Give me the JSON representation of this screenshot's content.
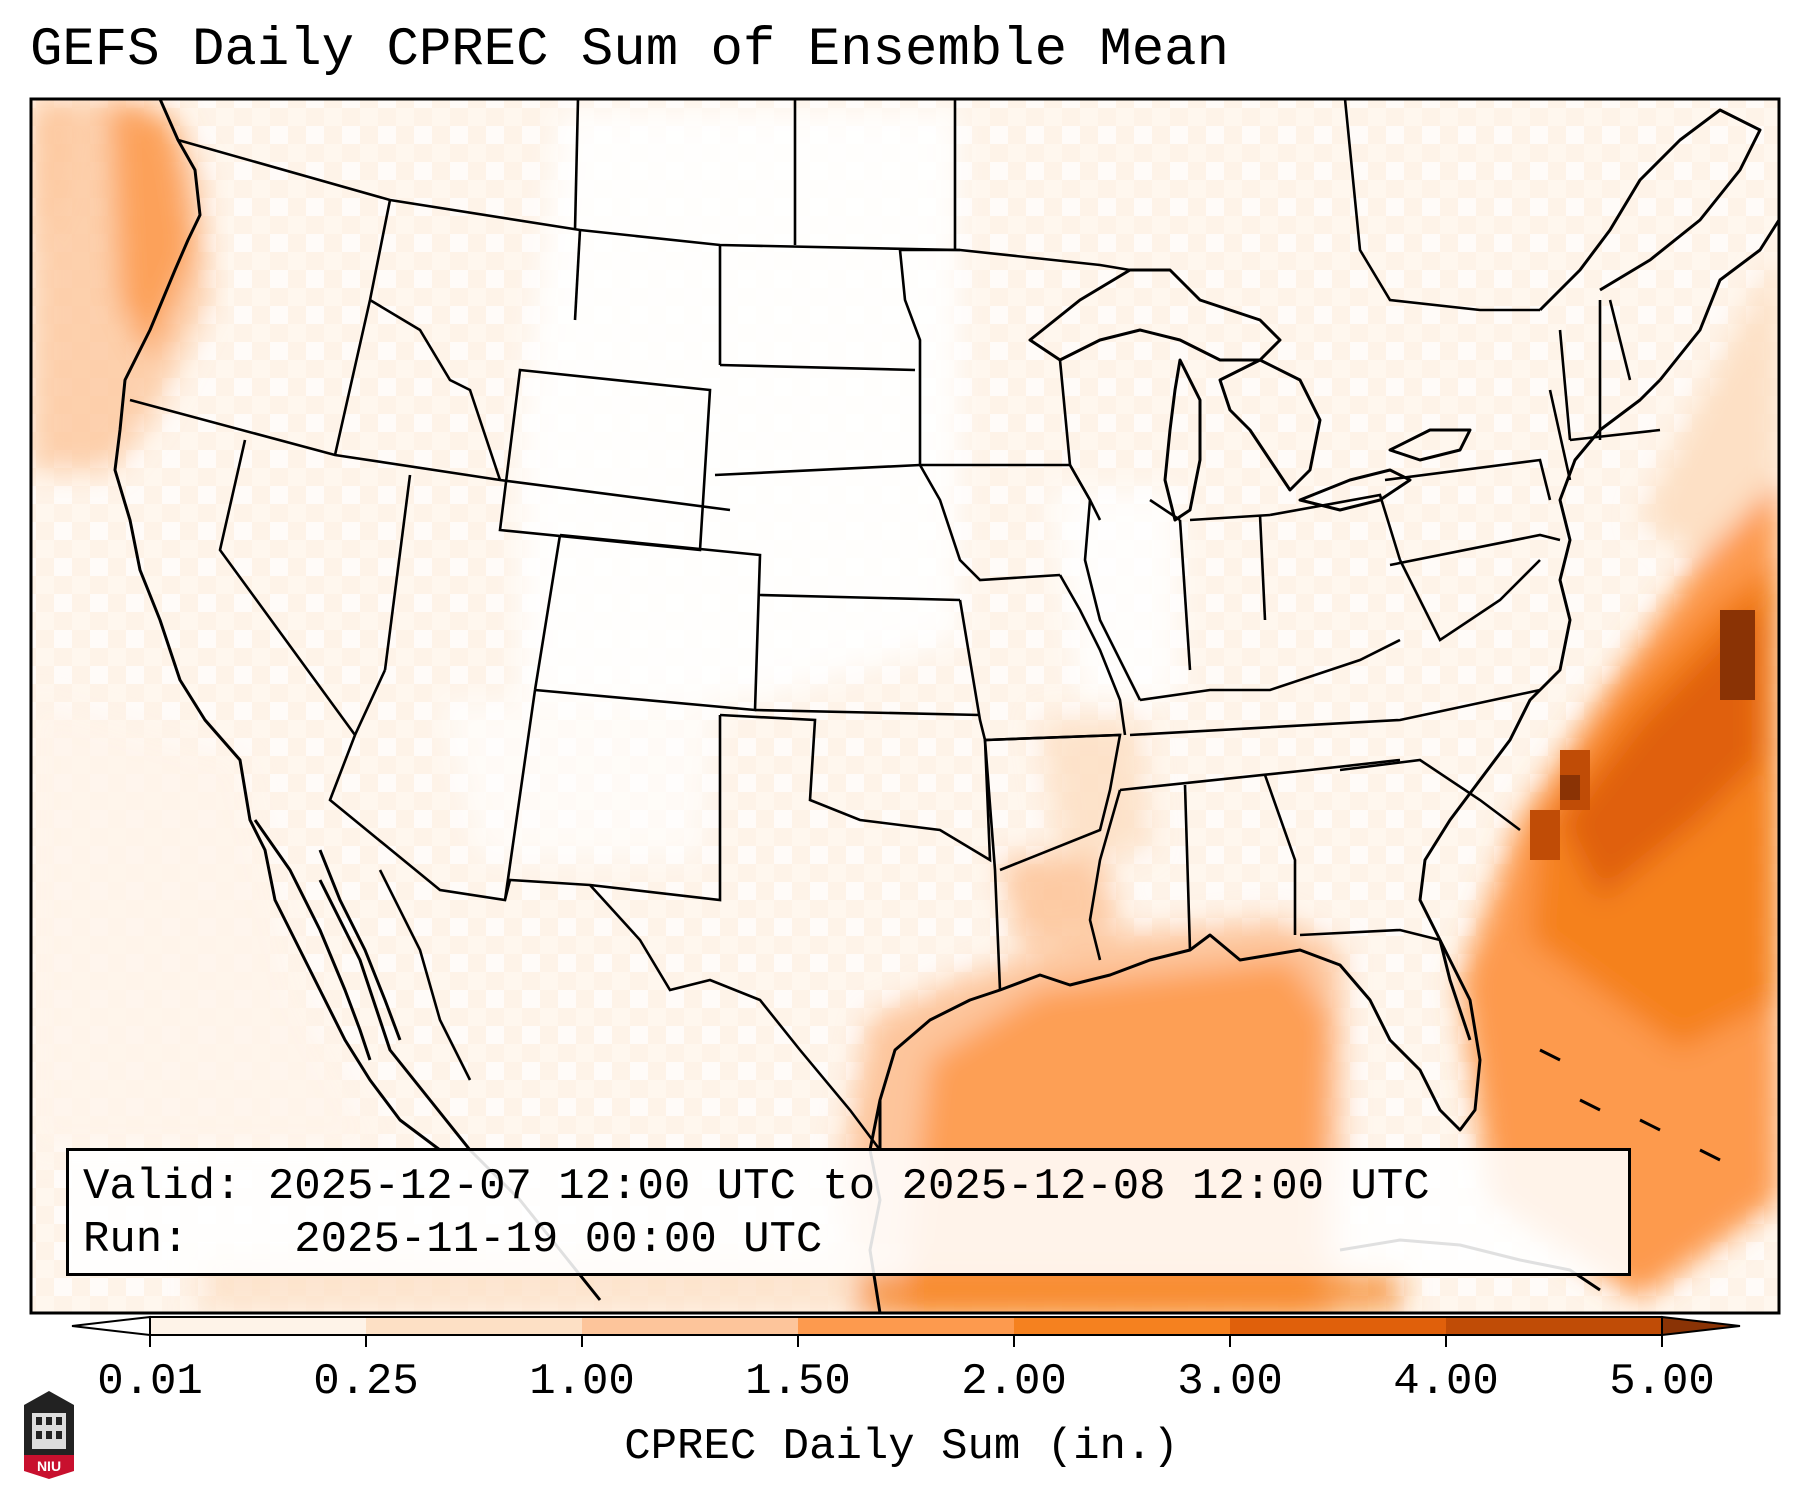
{
  "title": "GEFS Daily CPREC Sum of Ensemble Mean",
  "info": {
    "valid_label": "Valid:",
    "valid_value": "2025-12-07 12:00 UTC to 2025-12-08 12:00 UTC",
    "run_label": "Run:",
    "run_value": "2025-11-19 00:00 UTC"
  },
  "colorbar": {
    "label": "CPREC Daily Sum (in.)",
    "ticks": [
      "0.01",
      "0.25",
      "1.00",
      "1.50",
      "2.00",
      "3.00",
      "4.00",
      "5.00"
    ],
    "colors": [
      "#fef3e8",
      "#fde0c5",
      "#fdc59b",
      "#fd9a4e",
      "#f5811f",
      "#e0600b",
      "#c04c06"
    ],
    "under_color": "#ffffff",
    "over_color": "#8a3305"
  },
  "logo": {
    "text": "NIU",
    "color": "#c8102e",
    "icon": "university-tower-icon"
  }
}
